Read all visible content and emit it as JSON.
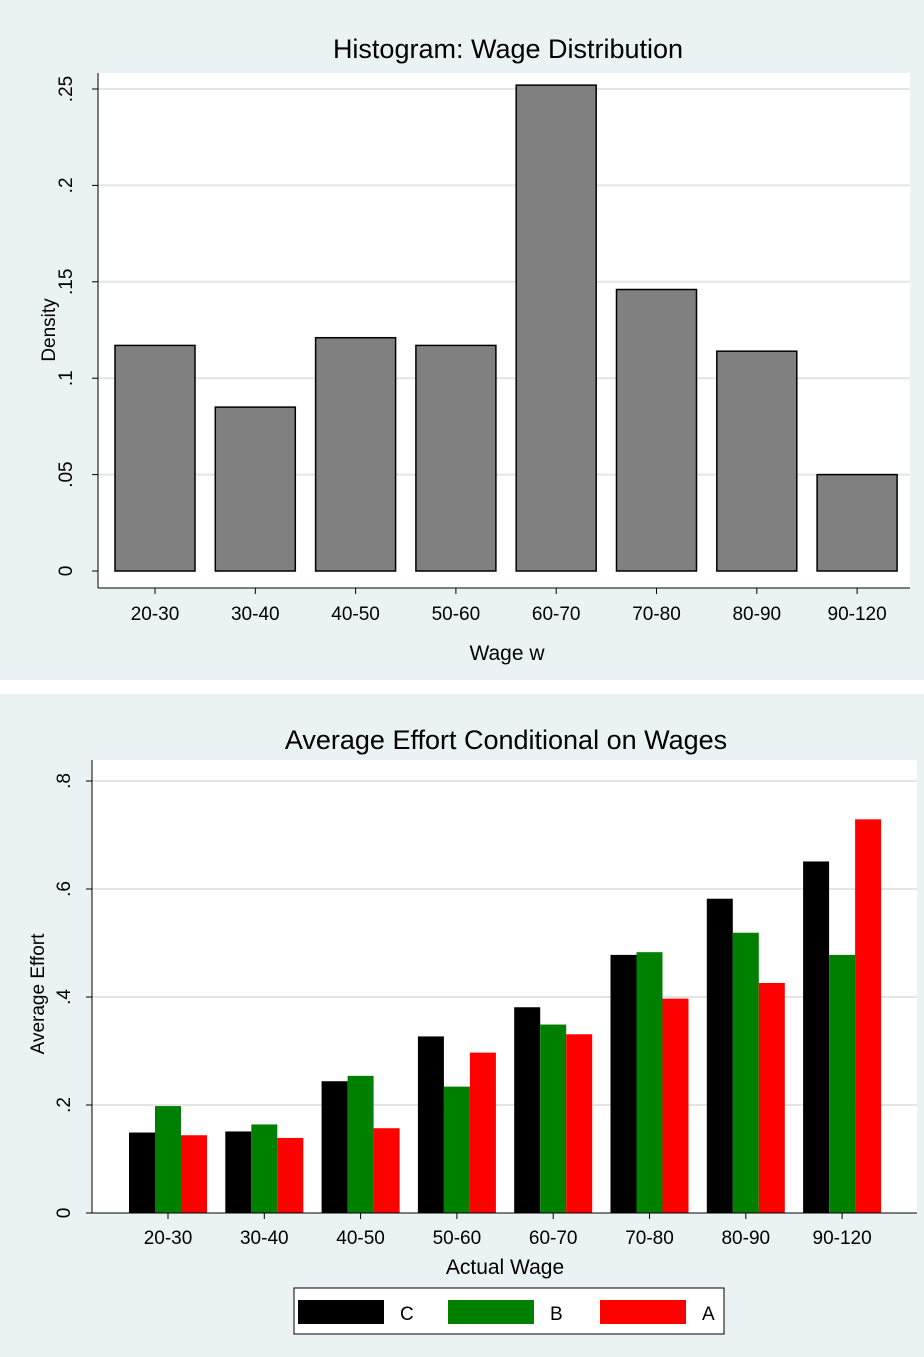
{
  "chart_data": [
    {
      "type": "bar",
      "title": "Histogram: Wage Distribution",
      "xlabel": "Wage w",
      "ylabel": "Density",
      "categories": [
        "20-30",
        "30-40",
        "40-50",
        "50-60",
        "60-70",
        "70-80",
        "80-90",
        "90-120"
      ],
      "values": [
        0.117,
        0.085,
        0.121,
        0.117,
        0.252,
        0.146,
        0.114,
        0.05
      ],
      "ylim": [
        0,
        0.25
      ],
      "yticks": [
        0,
        0.05,
        0.1,
        0.15,
        0.2,
        0.25
      ],
      "ytick_labels": [
        "0",
        ".05",
        ".1",
        ".15",
        ".2",
        ".25"
      ],
      "colors": {
        "bar": "#808080",
        "bar_edge": "#000000",
        "grid": "#e4e4e4",
        "background": "#eaf2f3"
      },
      "grid": true
    },
    {
      "type": "bar",
      "title": "Average Effort Conditional on Wages",
      "xlabel": "Actual Wage",
      "ylabel": "Average Effort",
      "categories": [
        "20-30",
        "30-40",
        "40-50",
        "50-60",
        "60-70",
        "70-80",
        "80-90",
        "90-120"
      ],
      "series": [
        {
          "name": "C",
          "color": "#000000",
          "values": [
            0.149,
            0.151,
            0.244,
            0.327,
            0.381,
            0.478,
            0.582,
            0.651
          ]
        },
        {
          "name": "B",
          "color": "#008000",
          "values": [
            0.198,
            0.164,
            0.254,
            0.234,
            0.349,
            0.483,
            0.519,
            0.478
          ]
        },
        {
          "name": "A",
          "color": "#ff0000",
          "values": [
            0.144,
            0.139,
            0.157,
            0.297,
            0.331,
            0.397,
            0.426,
            0.729
          ]
        }
      ],
      "ylim": [
        0,
        0.8
      ],
      "yticks": [
        0,
        0.2,
        0.4,
        0.6,
        0.8
      ],
      "ytick_labels": [
        "0",
        ".2",
        ".4",
        ".6",
        ".8"
      ],
      "legend": "bottom-center",
      "grid": true
    }
  ]
}
